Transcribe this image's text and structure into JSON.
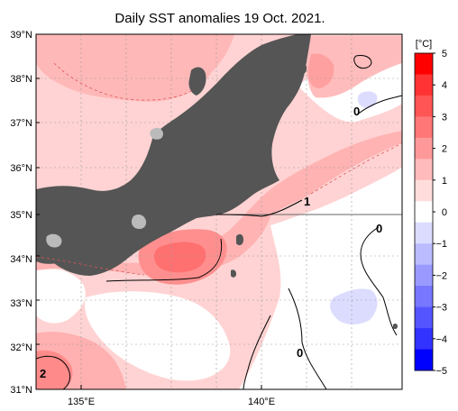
{
  "title": "Daily SST anomalies 19 Oct. 2021.",
  "map": {
    "lat_ticks": [
      "39°N",
      "38°N",
      "37°N",
      "36°N",
      "35°N",
      "34°N",
      "33°N",
      "32°N",
      "31°N"
    ],
    "lon_ticks": [
      "135°E",
      "140°E"
    ],
    "lat_range": [
      31,
      39
    ],
    "lon_range": [
      133.5,
      144
    ],
    "land_color": "#555555",
    "contour_labels": [
      "0",
      "1",
      "0",
      "0",
      "2"
    ]
  },
  "colorbar": {
    "unit": "[°C]",
    "labels": [
      "5",
      "4",
      "3",
      "2",
      "1",
      "0",
      "−1",
      "−2",
      "−3",
      "−4",
      "−5"
    ],
    "colors": [
      "#ff0000",
      "#ff3333",
      "#ff5555",
      "#ff7777",
      "#ff9999",
      "#ffbbbb",
      "#ffdddd",
      "#ffffff",
      "#dcdcff",
      "#bbbbff",
      "#9999ff",
      "#7777ff",
      "#5555ff",
      "#3333ff",
      "#0000ff"
    ]
  }
}
